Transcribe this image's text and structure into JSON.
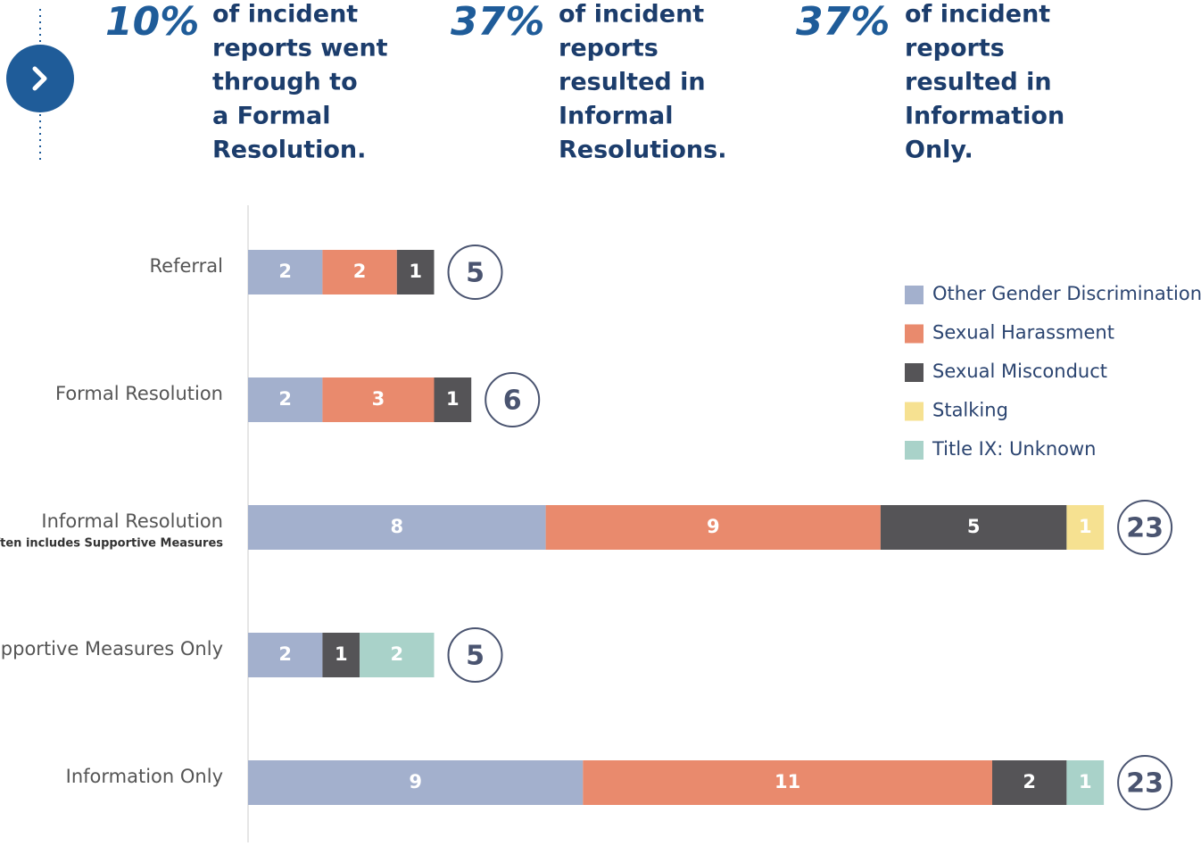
{
  "stats": [
    {
      "percent": "10%",
      "lines": [
        "of incident",
        "reports went",
        "through to",
        "a Formal",
        "Resolution."
      ]
    },
    {
      "percent": "37%",
      "lines": [
        "of incident",
        "reports",
        "resulted in",
        "Informal",
        "Resolutions."
      ]
    },
    {
      "percent": "37%",
      "lines": [
        "of incident",
        "reports",
        "resulted in",
        "Information",
        "Only."
      ]
    }
  ],
  "chart_data": {
    "type": "stacked_bar_horizontal",
    "categories": [
      "Referral",
      "Formal Resolution",
      "Informal Resolution",
      "Supportive Measures Only",
      "Information Only"
    ],
    "category_notes": [
      null,
      null,
      "Often includes  Supportive Measures",
      null,
      null
    ],
    "series": [
      {
        "name": "Other Gender Discrimination",
        "color": "#a3b0cd",
        "values": [
          2,
          2,
          8,
          2,
          9
        ]
      },
      {
        "name": "Sexual Harassment",
        "color": "#e98a6d",
        "values": [
          2,
          3,
          9,
          null,
          11
        ]
      },
      {
        "name": "Sexual Misconduct",
        "color": "#555457",
        "values": [
          1,
          1,
          5,
          1,
          2
        ]
      },
      {
        "name": "Stalking",
        "color": "#f6e191",
        "values": [
          null,
          null,
          1,
          null,
          null
        ]
      },
      {
        "name": "Title IX: Unknown",
        "color": "#a9d2c9",
        "values": [
          null,
          null,
          null,
          2,
          1
        ]
      }
    ],
    "totals": [
      5,
      6,
      23,
      5,
      23
    ],
    "legend": "right"
  }
}
